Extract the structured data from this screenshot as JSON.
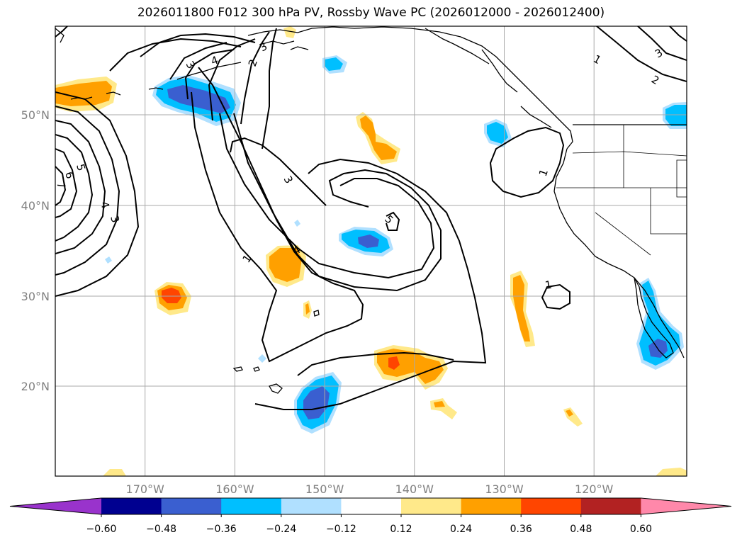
{
  "title": "2026011800 F012 300 hPa PV, Rossby Wave PC (2026012000 - 2026012400)",
  "lat_labels": [
    "50°N",
    "40°N",
    "30°N",
    "20°N"
  ],
  "lon_labels": [
    "170°W",
    "160°W",
    "150°W",
    "140°W",
    "130°W",
    "120°W"
  ],
  "colorbar": {
    "ticks": [
      "−0.60",
      "−0.48",
      "−0.36",
      "−0.24",
      "−0.12",
      "0.12",
      "0.24",
      "0.36",
      "0.48",
      "0.60"
    ],
    "colors": [
      "#9933cc",
      "#000090",
      "#3a5fd0",
      "#00bfff",
      "#b0e0ff",
      "#ffffff",
      "#ffe98a",
      "#ffa000",
      "#ff4500",
      "#b22222",
      "#ff88aa"
    ]
  },
  "contour_labels": [
    "5",
    "6",
    "7",
    "4",
    "3",
    "3",
    "4",
    "3",
    "2",
    "3",
    "4",
    "5",
    "1",
    "1",
    "1",
    "1",
    "2",
    "3"
  ],
  "fill_colors": {
    "pos_low": "#ffe98a",
    "pos_mid": "#ffa000",
    "pos_high": "#ff4500",
    "neg_low": "#b0e0ff",
    "neg_mid": "#00bfff",
    "neg_high": "#3a5fd0"
  }
}
